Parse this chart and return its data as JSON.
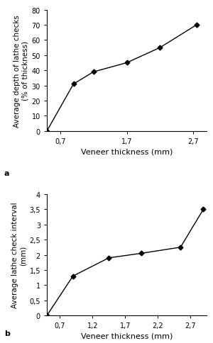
{
  "chart_a": {
    "x": [
      0.5,
      0.9,
      1.2,
      1.7,
      2.2,
      2.75
    ],
    "y": [
      0,
      31,
      39,
      45,
      55,
      70
    ],
    "xlabel": "Veneer thickness (mm)",
    "ylabel_line1": "Average depth of lathe checks",
    "ylabel_line2": "(% of thickness)",
    "xticks": [
      0.7,
      1.7,
      2.7
    ],
    "xticklabels": [
      "0,7",
      "1,7",
      "2,7"
    ],
    "yticks": [
      0,
      10,
      20,
      30,
      40,
      50,
      60,
      70,
      80
    ],
    "yticklabels": [
      "0",
      "10",
      "20",
      "30",
      "40",
      "50",
      "60",
      "70",
      "80"
    ],
    "ylim": [
      0,
      80
    ],
    "xlim": [
      0.5,
      2.9
    ],
    "label": "a"
  },
  "chart_b": {
    "x": [
      0.5,
      0.9,
      1.45,
      1.95,
      2.55,
      2.9
    ],
    "y": [
      0,
      1.3,
      1.9,
      2.05,
      2.25,
      3.5
    ],
    "xlabel": "Veneer thickness (mm)",
    "ylabel_line1": "Average lathe check interval",
    "ylabel_line2": "(mm)",
    "xticks": [
      0.7,
      1.2,
      1.7,
      2.2,
      2.7
    ],
    "xticklabels": [
      "0,7",
      "1,2",
      "1,7",
      "2,2",
      "2,7"
    ],
    "yticks": [
      0,
      0.5,
      1.0,
      1.5,
      2.0,
      2.5,
      3.0,
      3.5,
      4.0
    ],
    "yticklabels": [
      "0",
      "0,5",
      "1",
      "1,5",
      "2",
      "2,5",
      "3",
      "3,5",
      "4"
    ],
    "ylim": [
      0,
      4.0
    ],
    "xlim": [
      0.5,
      2.95
    ],
    "label": "b"
  },
  "line_color": "#000000",
  "marker": "D",
  "marker_size": 3.5,
  "line_width": 1.0,
  "bg_color": "#ffffff",
  "tick_font_size": 7.0,
  "label_font_size": 7.5,
  "axis_label_font_size": 8.0
}
